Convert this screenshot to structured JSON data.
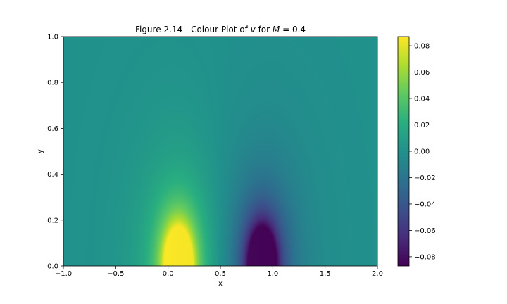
{
  "chart_data": {
    "type": "heatmap",
    "title": "Figure 2.14 - Colour Plot of v for M = 0.4",
    "title_prefix": "Figure 2.14 - Colour Plot of ",
    "title_var": "v",
    "title_mid": " for ",
    "title_m": "M",
    "title_suffix": " = 0.4",
    "xlabel": "x",
    "ylabel": "y",
    "xlim": [
      -1.0,
      2.0
    ],
    "ylim": [
      0.0,
      1.0
    ],
    "xticks": [
      -1.0,
      -0.5,
      0.0,
      0.5,
      1.0,
      1.5,
      2.0
    ],
    "xtick_labels": [
      "−1.0",
      "−0.5",
      "0.0",
      "0.5",
      "1.0",
      "1.5",
      "2.0"
    ],
    "yticks": [
      0.0,
      0.2,
      0.4,
      0.6,
      0.8,
      1.0
    ],
    "ytick_labels": [
      "0.0",
      "0.2",
      "0.4",
      "0.6",
      "0.8",
      "1.0"
    ],
    "colormap": "viridis",
    "colorbar": {
      "range": [
        -0.087,
        0.087
      ],
      "ticks": [
        -0.08,
        -0.06,
        -0.04,
        -0.02,
        0.0,
        0.02,
        0.04,
        0.06,
        0.08
      ],
      "tick_labels": [
        "−0.08",
        "−0.06",
        "−0.04",
        "−0.02",
        "0.00",
        "0.02",
        "0.04",
        "0.06",
        "0.08"
      ]
    },
    "features": [
      {
        "kind": "positive lobe",
        "x_center": 0.1,
        "y_base": 0.0,
        "peak_value": 0.087
      },
      {
        "kind": "negative lobe",
        "x_center": 0.9,
        "y_base": 0.0,
        "peak_value": -0.087
      }
    ],
    "background_value": 0.0
  }
}
